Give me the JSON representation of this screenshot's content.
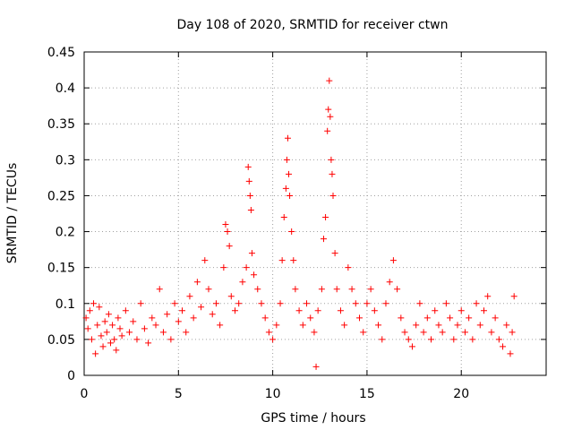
{
  "chart_data": {
    "type": "scatter",
    "title": "Day 108 of 2020, SRMTID for receiver ctwn",
    "xlabel": "GPS time / hours",
    "ylabel": "SRMTID / TECUs",
    "xlim": [
      0,
      24.5
    ],
    "ylim": [
      0,
      0.45
    ],
    "xticks": [
      0,
      5,
      10,
      15,
      20
    ],
    "xtick_labels": [
      "0",
      "5",
      "10",
      "15",
      "20"
    ],
    "yticks": [
      0,
      0.05,
      0.1,
      0.15,
      0.2,
      0.25,
      0.3,
      0.35,
      0.4,
      0.45
    ],
    "ytick_labels": [
      "0",
      "0.05",
      "0.1",
      "0.15",
      "0.2",
      "0.25",
      "0.3",
      "0.35",
      "0.4",
      "0.45"
    ],
    "grid": true,
    "marker": "+",
    "color": "#ff0000",
    "series": [
      {
        "name": "SRMTID",
        "points": [
          [
            0.1,
            0.08
          ],
          [
            0.2,
            0.065
          ],
          [
            0.3,
            0.09
          ],
          [
            0.4,
            0.05
          ],
          [
            0.5,
            0.1
          ],
          [
            0.6,
            0.03
          ],
          [
            0.7,
            0.07
          ],
          [
            0.8,
            0.095
          ],
          [
            0.9,
            0.055
          ],
          [
            1.0,
            0.04
          ],
          [
            1.1,
            0.075
          ],
          [
            1.2,
            0.06
          ],
          [
            1.3,
            0.085
          ],
          [
            1.4,
            0.045
          ],
          [
            1.5,
            0.07
          ],
          [
            1.6,
            0.05
          ],
          [
            1.7,
            0.035
          ],
          [
            1.8,
            0.08
          ],
          [
            1.9,
            0.065
          ],
          [
            2.0,
            0.055
          ],
          [
            2.2,
            0.09
          ],
          [
            2.4,
            0.06
          ],
          [
            2.6,
            0.075
          ],
          [
            2.8,
            0.05
          ],
          [
            3.0,
            0.1
          ],
          [
            3.2,
            0.065
          ],
          [
            3.4,
            0.045
          ],
          [
            3.6,
            0.08
          ],
          [
            3.8,
            0.07
          ],
          [
            4.0,
            0.12
          ],
          [
            4.2,
            0.06
          ],
          [
            4.4,
            0.085
          ],
          [
            4.6,
            0.05
          ],
          [
            4.8,
            0.1
          ],
          [
            5.0,
            0.075
          ],
          [
            5.2,
            0.09
          ],
          [
            5.4,
            0.06
          ],
          [
            5.6,
            0.11
          ],
          [
            5.8,
            0.08
          ],
          [
            6.0,
            0.13
          ],
          [
            6.2,
            0.095
          ],
          [
            6.4,
            0.16
          ],
          [
            6.6,
            0.12
          ],
          [
            6.8,
            0.085
          ],
          [
            7.0,
            0.1
          ],
          [
            7.2,
            0.07
          ],
          [
            7.4,
            0.15
          ],
          [
            7.5,
            0.21
          ],
          [
            7.6,
            0.2
          ],
          [
            7.7,
            0.18
          ],
          [
            7.8,
            0.11
          ],
          [
            8.0,
            0.09
          ],
          [
            8.2,
            0.1
          ],
          [
            8.4,
            0.13
          ],
          [
            8.6,
            0.15
          ],
          [
            8.7,
            0.29
          ],
          [
            8.75,
            0.27
          ],
          [
            8.8,
            0.25
          ],
          [
            8.85,
            0.23
          ],
          [
            8.9,
            0.17
          ],
          [
            9.0,
            0.14
          ],
          [
            9.2,
            0.12
          ],
          [
            9.4,
            0.1
          ],
          [
            9.6,
            0.08
          ],
          [
            9.8,
            0.06
          ],
          [
            10.0,
            0.05
          ],
          [
            10.2,
            0.07
          ],
          [
            10.4,
            0.1
          ],
          [
            10.5,
            0.16
          ],
          [
            10.6,
            0.22
          ],
          [
            10.7,
            0.26
          ],
          [
            10.75,
            0.3
          ],
          [
            10.8,
            0.33
          ],
          [
            10.85,
            0.28
          ],
          [
            10.9,
            0.25
          ],
          [
            11.0,
            0.2
          ],
          [
            11.1,
            0.16
          ],
          [
            11.2,
            0.12
          ],
          [
            11.4,
            0.09
          ],
          [
            11.6,
            0.07
          ],
          [
            11.8,
            0.1
          ],
          [
            12.0,
            0.08
          ],
          [
            12.2,
            0.06
          ],
          [
            12.3,
            0.012
          ],
          [
            12.4,
            0.09
          ],
          [
            12.6,
            0.12
          ],
          [
            12.7,
            0.19
          ],
          [
            12.8,
            0.22
          ],
          [
            12.9,
            0.34
          ],
          [
            12.95,
            0.37
          ],
          [
            13.0,
            0.41
          ],
          [
            13.05,
            0.36
          ],
          [
            13.1,
            0.3
          ],
          [
            13.15,
            0.28
          ],
          [
            13.2,
            0.25
          ],
          [
            13.3,
            0.17
          ],
          [
            13.4,
            0.12
          ],
          [
            13.6,
            0.09
          ],
          [
            13.8,
            0.07
          ],
          [
            14.0,
            0.15
          ],
          [
            14.2,
            0.12
          ],
          [
            14.4,
            0.1
          ],
          [
            14.6,
            0.08
          ],
          [
            14.8,
            0.06
          ],
          [
            15.0,
            0.1
          ],
          [
            15.2,
            0.12
          ],
          [
            15.4,
            0.09
          ],
          [
            15.6,
            0.07
          ],
          [
            15.8,
            0.05
          ],
          [
            16.0,
            0.1
          ],
          [
            16.2,
            0.13
          ],
          [
            16.4,
            0.16
          ],
          [
            16.6,
            0.12
          ],
          [
            16.8,
            0.08
          ],
          [
            17.0,
            0.06
          ],
          [
            17.2,
            0.05
          ],
          [
            17.4,
            0.04
          ],
          [
            17.6,
            0.07
          ],
          [
            17.8,
            0.1
          ],
          [
            18.0,
            0.06
          ],
          [
            18.2,
            0.08
          ],
          [
            18.4,
            0.05
          ],
          [
            18.6,
            0.09
          ],
          [
            18.8,
            0.07
          ],
          [
            19.0,
            0.06
          ],
          [
            19.2,
            0.1
          ],
          [
            19.4,
            0.08
          ],
          [
            19.6,
            0.05
          ],
          [
            19.8,
            0.07
          ],
          [
            20.0,
            0.09
          ],
          [
            20.2,
            0.06
          ],
          [
            20.4,
            0.08
          ],
          [
            20.6,
            0.05
          ],
          [
            20.8,
            0.1
          ],
          [
            21.0,
            0.07
          ],
          [
            21.2,
            0.09
          ],
          [
            21.4,
            0.11
          ],
          [
            21.6,
            0.06
          ],
          [
            21.8,
            0.08
          ],
          [
            22.0,
            0.05
          ],
          [
            22.2,
            0.04
          ],
          [
            22.4,
            0.07
          ],
          [
            22.6,
            0.03
          ],
          [
            22.7,
            0.06
          ],
          [
            22.8,
            0.11
          ]
        ]
      }
    ]
  }
}
